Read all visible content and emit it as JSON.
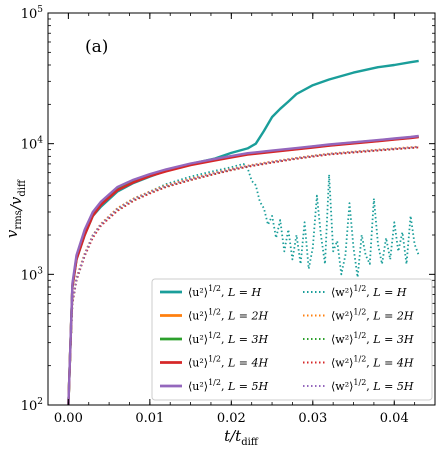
{
  "chart_data": {
    "type": "line",
    "panel_label": "(a)",
    "xlabel": "t/t_diff",
    "ylabel": "v_rms/v_diff",
    "xlim": [
      -0.0025,
      0.045
    ],
    "ylim": [
      100,
      100000
    ],
    "yscale": "log",
    "xticks": [
      0.0,
      0.01,
      0.02,
      0.03,
      0.04
    ],
    "xtick_labels": [
      "0.00",
      "0.01",
      "0.02",
      "0.03",
      "0.04"
    ],
    "yticks": [
      100,
      1000,
      10000,
      100000
    ],
    "ytick_labels": [
      {
        "base": "10",
        "exp": "2"
      },
      {
        "base": "10",
        "exp": "3"
      },
      {
        "base": "10",
        "exp": "4"
      },
      {
        "base": "10",
        "exp": "5"
      }
    ],
    "legend_position": "lower-right",
    "series": [
      {
        "name": "⟨u²⟩^1/2, L = H",
        "color": "#1a9e9a",
        "style": "solid",
        "x": [
          0.0,
          0.0005,
          0.001,
          0.002,
          0.003,
          0.004,
          0.006,
          0.008,
          0.01,
          0.012,
          0.015,
          0.018,
          0.02,
          0.022,
          0.023,
          0.024,
          0.025,
          0.026,
          0.027,
          0.028,
          0.03,
          0.032,
          0.035,
          0.038,
          0.04,
          0.042,
          0.043
        ],
        "y": [
          100,
          800,
          1300,
          2000,
          2800,
          3300,
          4300,
          5000,
          5600,
          6200,
          7000,
          7700,
          8500,
          9200,
          10000,
          12500,
          16000,
          18500,
          21000,
          24000,
          28000,
          31000,
          35000,
          38500,
          40000,
          42000,
          43000
        ]
      },
      {
        "name": "⟨w²⟩^1/2, L = H",
        "color": "#1a9e9a",
        "style": "dotted",
        "x": [
          0.0,
          0.0005,
          0.001,
          0.002,
          0.003,
          0.004,
          0.006,
          0.008,
          0.01,
          0.012,
          0.015,
          0.018,
          0.02,
          0.0215,
          0.022,
          0.0225,
          0.023,
          0.0235,
          0.024,
          0.0245,
          0.025,
          0.0255,
          0.026,
          0.0265,
          0.027,
          0.0275,
          0.028,
          0.0285,
          0.029,
          0.0295,
          0.03,
          0.0305,
          0.031,
          0.0315,
          0.032,
          0.0325,
          0.033,
          0.0335,
          0.034,
          0.0345,
          0.035,
          0.0355,
          0.036,
          0.0365,
          0.037,
          0.0375,
          0.038,
          0.0385,
          0.039,
          0.0395,
          0.04,
          0.0405,
          0.041,
          0.0415,
          0.042,
          0.0425,
          0.043
        ],
        "y": [
          100,
          600,
          900,
          1400,
          2000,
          2400,
          3200,
          3800,
          4300,
          4900,
          5600,
          6200,
          6600,
          7000,
          6500,
          5200,
          4800,
          3600,
          3200,
          2400,
          2800,
          1900,
          2600,
          1500,
          2200,
          1300,
          2000,
          1200,
          2500,
          1100,
          1600,
          4000,
          2000,
          1200,
          5800,
          1500,
          1800,
          1000,
          1400,
          3500,
          1600,
          950,
          2000,
          1400,
          1200,
          3800,
          1700,
          1200,
          1900,
          1300,
          2500,
          1500,
          2100,
          1200,
          2800,
          1700,
          1400
        ]
      },
      {
        "name": "⟨u²⟩^1/2, L = 2H",
        "color": "#ff7f0e",
        "style": "solid",
        "x": [
          0.0,
          0.0005,
          0.001,
          0.002,
          0.003,
          0.004,
          0.006,
          0.008,
          0.01,
          0.012,
          0.015,
          0.018,
          0.02,
          0.022,
          0.025,
          0.028,
          0.03,
          0.032,
          0.035,
          0.038,
          0.04,
          0.042,
          0.043
        ],
        "y": [
          100,
          820,
          1350,
          2100,
          2900,
          3500,
          4500,
          5200,
          5800,
          6300,
          7000,
          7600,
          8000,
          8400,
          8800,
          9200,
          9500,
          9800,
          10200,
          10600,
          10900,
          11200,
          11400
        ]
      },
      {
        "name": "⟨w²⟩^1/2, L = 2H",
        "color": "#ff7f0e",
        "style": "dotted",
        "x": [
          0.0,
          0.0005,
          0.001,
          0.002,
          0.003,
          0.004,
          0.006,
          0.008,
          0.01,
          0.012,
          0.015,
          0.018,
          0.02,
          0.022,
          0.025,
          0.028,
          0.03,
          0.032,
          0.035,
          0.038,
          0.04,
          0.042,
          0.043
        ],
        "y": [
          100,
          620,
          950,
          1450,
          2000,
          2450,
          3200,
          3800,
          4300,
          4800,
          5400,
          6000,
          6400,
          6800,
          7300,
          7800,
          8100,
          8400,
          8700,
          9000,
          9200,
          9400,
          9500
        ]
      },
      {
        "name": "⟨u²⟩^1/2, L = 3H",
        "color": "#2ca02c",
        "style": "solid",
        "x": [
          0.0,
          0.0005,
          0.001,
          0.002,
          0.003,
          0.004,
          0.006,
          0.008,
          0.01,
          0.012,
          0.015,
          0.018,
          0.02,
          0.022,
          0.025,
          0.028,
          0.03,
          0.032,
          0.035,
          0.038,
          0.04,
          0.042,
          0.043
        ],
        "y": [
          100,
          810,
          1320,
          2050,
          2850,
          3450,
          4450,
          5100,
          5700,
          6200,
          6900,
          7500,
          7900,
          8300,
          8700,
          9100,
          9400,
          9700,
          10100,
          10500,
          10800,
          11100,
          11300
        ]
      },
      {
        "name": "⟨w²⟩^1/2, L = 3H",
        "color": "#2ca02c",
        "style": "dotted",
        "x": [
          0.0,
          0.0005,
          0.001,
          0.002,
          0.003,
          0.004,
          0.006,
          0.008,
          0.01,
          0.012,
          0.015,
          0.018,
          0.02,
          0.022,
          0.025,
          0.028,
          0.03,
          0.032,
          0.035,
          0.038,
          0.04,
          0.042,
          0.043
        ],
        "y": [
          100,
          600,
          920,
          1400,
          1950,
          2400,
          3100,
          3700,
          4200,
          4700,
          5300,
          5900,
          6300,
          6700,
          7200,
          7700,
          8000,
          8300,
          8600,
          8900,
          9100,
          9300,
          9400
        ]
      },
      {
        "name": "⟨u²⟩^1/2, L = 4H",
        "color": "#d62728",
        "style": "solid",
        "x": [
          0.0,
          0.0005,
          0.001,
          0.002,
          0.003,
          0.004,
          0.006,
          0.008,
          0.01,
          0.012,
          0.015,
          0.018,
          0.02,
          0.022,
          0.025,
          0.028,
          0.03,
          0.032,
          0.035,
          0.038,
          0.04,
          0.042,
          0.043
        ],
        "y": [
          100,
          800,
          1300,
          2000,
          2800,
          3400,
          4400,
          5050,
          5650,
          6150,
          6850,
          7450,
          7850,
          8250,
          8650,
          9050,
          9350,
          9650,
          10050,
          10450,
          10750,
          11050,
          11250
        ]
      },
      {
        "name": "⟨w²⟩^1/2, L = 4H",
        "color": "#d62728",
        "style": "dotted",
        "x": [
          0.0,
          0.0005,
          0.001,
          0.002,
          0.003,
          0.004,
          0.006,
          0.008,
          0.01,
          0.012,
          0.015,
          0.018,
          0.02,
          0.022,
          0.025,
          0.028,
          0.03,
          0.032,
          0.035,
          0.038,
          0.04,
          0.042,
          0.043
        ],
        "y": [
          100,
          590,
          900,
          1380,
          1900,
          2350,
          3050,
          3650,
          4150,
          4650,
          5250,
          5850,
          6250,
          6650,
          7150,
          7650,
          7950,
          8250,
          8550,
          8850,
          9050,
          9250,
          9350
        ]
      },
      {
        "name": "⟨u²⟩^1/2, L = 5H",
        "color": "#9467bd",
        "style": "solid",
        "x": [
          0.0,
          0.0005,
          0.001,
          0.002,
          0.003,
          0.004,
          0.006,
          0.008,
          0.01,
          0.012,
          0.015,
          0.018,
          0.02,
          0.022,
          0.025,
          0.028,
          0.03,
          0.032,
          0.035,
          0.038,
          0.04,
          0.042,
          0.043
        ],
        "y": [
          100,
          850,
          1400,
          2200,
          3000,
          3600,
          4650,
          5300,
          5850,
          6350,
          7050,
          7650,
          8050,
          8450,
          8850,
          9250,
          9550,
          9850,
          10250,
          10650,
          10950,
          11250,
          11450
        ]
      },
      {
        "name": "⟨w²⟩^1/2, L = 5H",
        "color": "#9467bd",
        "style": "dotted",
        "x": [
          0.0,
          0.0005,
          0.001,
          0.002,
          0.003,
          0.004,
          0.006,
          0.008,
          0.01,
          0.012,
          0.015,
          0.018,
          0.02,
          0.022,
          0.025,
          0.028,
          0.03,
          0.032,
          0.035,
          0.038,
          0.04,
          0.042,
          0.043
        ],
        "y": [
          100,
          610,
          930,
          1420,
          1980,
          2420,
          3150,
          3750,
          4250,
          4750,
          5350,
          5950,
          6350,
          6750,
          7250,
          7750,
          8050,
          8350,
          8650,
          8950,
          9150,
          9350,
          9450
        ]
      }
    ],
    "legend": [
      {
        "name_tex": "⟨u²⟩",
        "color": "#1a9e9a",
        "style": "solid",
        "L": "H"
      },
      {
        "name_tex": "⟨w²⟩",
        "color": "#1a9e9a",
        "style": "dotted",
        "L": "H"
      },
      {
        "name_tex": "⟨u²⟩",
        "color": "#ff7f0e",
        "style": "solid",
        "L": "2H"
      },
      {
        "name_tex": "⟨w²⟩",
        "color": "#ff7f0e",
        "style": "dotted",
        "L": "2H"
      },
      {
        "name_tex": "⟨u²⟩",
        "color": "#2ca02c",
        "style": "solid",
        "L": "3H"
      },
      {
        "name_tex": "⟨w²⟩",
        "color": "#2ca02c",
        "style": "dotted",
        "L": "3H"
      },
      {
        "name_tex": "⟨u²⟩",
        "color": "#d62728",
        "style": "solid",
        "L": "4H"
      },
      {
        "name_tex": "⟨w²⟩",
        "color": "#d62728",
        "style": "dotted",
        "L": "4H"
      },
      {
        "name_tex": "⟨u²⟩",
        "color": "#9467bd",
        "style": "solid",
        "L": "5H"
      },
      {
        "name_tex": "⟨w²⟩",
        "color": "#9467bd",
        "style": "dotted",
        "L": "5H"
      }
    ]
  }
}
